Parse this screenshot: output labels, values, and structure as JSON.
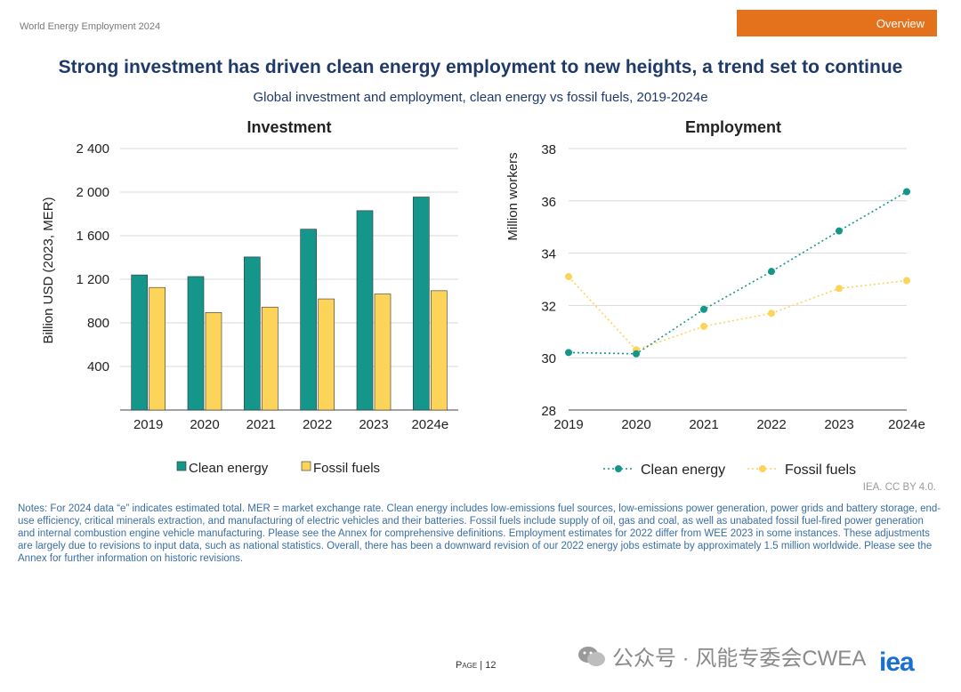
{
  "header": {
    "doc_label": "World Energy Employment 2024",
    "section_tab": "Overview"
  },
  "title": "Strong investment has driven clean energy employment to new heights, a trend set to continue",
  "subtitle": "Global investment and employment, clean energy vs fossil fuels, 2019-2024e",
  "colors": {
    "clean": "#14978a",
    "fossil": "#fdd45a",
    "title": "#1f3a68",
    "tab": "#e4711c"
  },
  "chart_data": [
    {
      "type": "bar",
      "title": "Investment",
      "ylabel": "Billion USD (2023, MER)",
      "xlabel": "",
      "categories": [
        "2019",
        "2020",
        "2021",
        "2022",
        "2023",
        "2024e"
      ],
      "ylim": [
        0,
        2400
      ],
      "yticks": [
        400,
        800,
        1200,
        1600,
        2000,
        2400
      ],
      "ytick_labels": [
        "400",
        "800",
        "1 200",
        "1 600",
        "2 000",
        "2 400"
      ],
      "grid": true,
      "legend": "bottom",
      "series": [
        {
          "name": "Clean energy",
          "values": [
            1240,
            1225,
            1405,
            1660,
            1830,
            1955
          ]
        },
        {
          "name": "Fossil fuels",
          "values": [
            1125,
            895,
            945,
            1020,
            1065,
            1095
          ]
        }
      ]
    },
    {
      "type": "line",
      "title": "Employment",
      "ylabel": "Million workers",
      "xlabel": "",
      "categories": [
        "2019",
        "2020",
        "2021",
        "2022",
        "2023",
        "2024e"
      ],
      "ylim": [
        28,
        38
      ],
      "yticks": [
        28,
        30,
        32,
        34,
        36,
        38
      ],
      "ytick_labels": [
        "28",
        "30",
        "32",
        "34",
        "36",
        "38"
      ],
      "grid": true,
      "legend": "bottom",
      "series": [
        {
          "name": "Clean energy",
          "values": [
            30.2,
            30.15,
            31.85,
            33.3,
            34.85,
            36.35
          ]
        },
        {
          "name": "Fossil fuels",
          "values": [
            33.1,
            30.3,
            31.2,
            31.7,
            32.65,
            32.95
          ]
        }
      ]
    }
  ],
  "notes": "Notes: For 2024 data “e” indicates estimated total. MER = market exchange rate. Clean energy includes low-emissions fuel sources, low-emissions power generation, power grids and battery storage, end-use efficiency, critical minerals extraction, and manufacturing of electric vehicles and their batteries. Fossil fuels include supply of oil, gas and coal, as well as unabated fossil fuel-fired power generation and internal combustion engine vehicle manufacturing. Please see the Annex for comprehensive definitions. Employment estimates for 2022 differ from WEE 2023 in some instances. These adjustments are largely due to revisions to input data, such as national statistics. Overall, there has been a downward revision of our 2022 energy jobs estimate by approximately 1.5 million worldwide. Please see the Annex for further information on historic revisions.",
  "credit": "IEA. CC BY 4.0.",
  "footer": {
    "page_word": "Page",
    "page_number": "12",
    "watermark": "公众号 · 风能专委会CWEA",
    "logo": "iea"
  }
}
